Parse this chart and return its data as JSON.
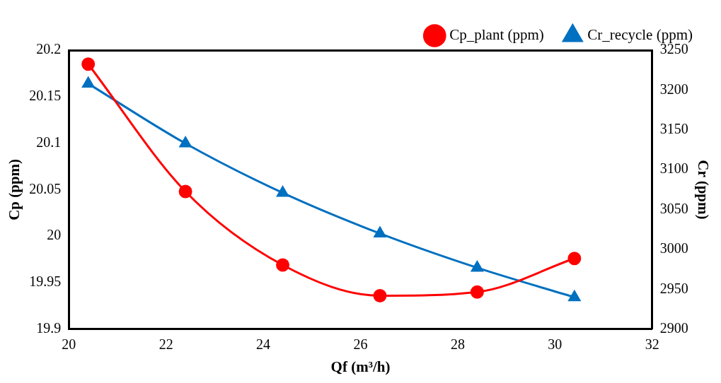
{
  "chart_data": {
    "type": "line",
    "xlabel": "Qf (m³/h)",
    "ylabel": "Cp (ppm)",
    "y2label": "Cr (ppm)",
    "x": [
      20.4,
      22.4,
      24.4,
      26.4,
      28.4,
      30.4
    ],
    "series": [
      {
        "name": "Cp_plant (ppm)",
        "color": "#ff0000",
        "marker": "circle",
        "values": [
          20.185,
          20.048,
          19.969,
          19.936,
          19.94,
          19.976
        ]
      },
      {
        "name": "Cr_recycle (ppm)",
        "color": "#0070c0",
        "marker": "triangle",
        "axis": "y2",
        "values": [
          3208,
          3133,
          3071,
          3020,
          2977,
          2940
        ]
      }
    ],
    "xlim": [
      20,
      32
    ],
    "xticks": [
      20,
      22,
      24,
      26,
      28,
      30,
      32
    ],
    "ylim": [
      19.9,
      20.2
    ],
    "yticks": [
      19.9,
      19.95,
      20,
      20.05,
      20.1,
      20.15,
      20.2
    ],
    "y2lim": [
      2900,
      3250
    ],
    "y2ticks": [
      2900,
      2950,
      3000,
      3050,
      3100,
      3150,
      3200,
      3250
    ],
    "grid": false,
    "legend": "top right"
  }
}
